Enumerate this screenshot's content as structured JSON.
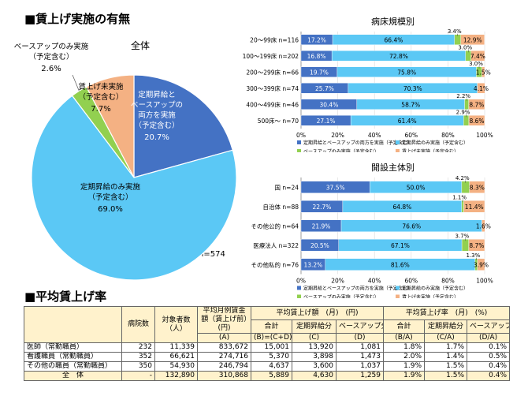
{
  "sections": {
    "wage_increase_title": "■賃上げ実施の有無",
    "average_rate_title": "■平均賃上げ率"
  },
  "colors": {
    "both": "#4472c4",
    "regular_only": "#5bc8f5",
    "base_up_only": "#92d050",
    "none": "#f4b183"
  },
  "chart_data": [
    {
      "type": "pie",
      "title": "全体",
      "total_label": "n=574",
      "slices": [
        {
          "key": "both",
          "label": "定期昇給とベースアップの両方を実施（予定含む）",
          "label_lines": [
            "定期昇給と",
            "ベースアップの",
            "両方を実施",
            "（予定含む）"
          ],
          "value": 20.7,
          "value_label": "20.7%"
        },
        {
          "key": "regular_only",
          "label": "定期昇給のみ実施（予定含む）",
          "label_lines": [
            "定期昇給のみ実施",
            "（予定含む）"
          ],
          "value": 69.0,
          "value_label": "69.0%"
        },
        {
          "key": "base_up_only",
          "label": "ベースアップのみ実施（予定含む）",
          "label_lines": [
            "ベースアップのみ実施",
            "（予定含む）"
          ],
          "value": 2.6,
          "value_label": "2.6%"
        },
        {
          "key": "none",
          "label": "賃上げ未実施（予定含む）",
          "label_lines": [
            "賃上げ未実施",
            "（予定含む）"
          ],
          "value": 7.7,
          "value_label": "7.7%"
        }
      ]
    },
    {
      "type": "bar",
      "orientation": "horizontal",
      "stacked": true,
      "title": "病床規模別",
      "xlim": [
        0,
        100
      ],
      "x_ticks": [
        "0%",
        "20%",
        "40%",
        "60%",
        "80%",
        "100%"
      ],
      "categories": [
        "20～99床 n=116",
        "100～199床 n=202",
        "200～299床 n=66",
        "300～399床 n=74",
        "400～499床 n=46",
        "500床～ n=70"
      ],
      "series": [
        {
          "key": "both",
          "name": "定期昇給とベースアップの両方を実施（予定含む）",
          "values": [
            17.2,
            16.8,
            19.7,
            25.7,
            30.4,
            27.1
          ],
          "labels": [
            "17.2%",
            "16.8%",
            "19.7%",
            "25.7%",
            "30.4%",
            "27.1%"
          ]
        },
        {
          "key": "regular_only",
          "name": "定期昇給のみ実施（予定含む）",
          "values": [
            66.4,
            72.8,
            75.8,
            70.3,
            58.7,
            61.4
          ],
          "labels": [
            "66.4%",
            "72.8%",
            "75.8%",
            "70.3%",
            "58.7%",
            "61.4%"
          ]
        },
        {
          "key": "base_up_only",
          "name": "ベースアップのみ実施（予定含む）",
          "values": [
            3.4,
            3.0,
            3.0,
            0,
            2.2,
            2.9
          ],
          "labels": [
            "3.4%",
            "3.0%",
            "3.0%",
            "",
            "2.2%",
            "2.9%"
          ]
        },
        {
          "key": "none",
          "name": "賃上げ未実施（予定含む）",
          "values": [
            12.9,
            7.4,
            1.5,
            4.1,
            8.7,
            8.6
          ],
          "labels": [
            "12.9%",
            "7.4%",
            "1.5%",
            "4.1%",
            "8.7%",
            "8.6%"
          ]
        }
      ],
      "legend_position": "bottom"
    },
    {
      "type": "bar",
      "orientation": "horizontal",
      "stacked": true,
      "title": "開設主体別",
      "xlim": [
        0,
        100
      ],
      "x_ticks": [
        "0%",
        "20%",
        "40%",
        "60%",
        "80%",
        "100%"
      ],
      "categories": [
        "国 n=24",
        "自治体 n=88",
        "その他公的 n=64",
        "医療法人 n=322",
        "その他私的 n=76"
      ],
      "series": [
        {
          "key": "both",
          "name": "定期昇給とベースアップの両方を実施（予定含む）",
          "values": [
            37.5,
            22.7,
            21.9,
            20.5,
            13.2
          ],
          "labels": [
            "37.5%",
            "22.7%",
            "21.9%",
            "20.5%",
            "13.2%"
          ]
        },
        {
          "key": "regular_only",
          "name": "定期昇給のみ実施（予定含む）",
          "values": [
            50.0,
            64.8,
            76.6,
            67.1,
            81.6
          ],
          "labels": [
            "50.0%",
            "64.8%",
            "76.6%",
            "67.1%",
            "81.6%"
          ]
        },
        {
          "key": "base_up_only",
          "name": "ベースアップのみ実施（予定含む）",
          "values": [
            4.2,
            1.1,
            0,
            3.7,
            1.3
          ],
          "labels": [
            "4.2%",
            "1.1%",
            "",
            "3.7%",
            "1.3%"
          ]
        },
        {
          "key": "none",
          "name": "賃上げ未実施（予定含む）",
          "values": [
            8.3,
            11.4,
            1.6,
            8.7,
            3.9
          ],
          "labels": [
            "8.3%",
            "11.4%",
            "1.6%",
            "8.7%",
            "3.9%"
          ]
        }
      ],
      "legend_position": "bottom"
    },
    {
      "type": "table",
      "title": "■平均賃上げ率",
      "header_top": [
        {
          "text": "",
          "rowspan": 3
        },
        {
          "text": "病院数",
          "rowspan": 3
        },
        {
          "text": "対象者数（人）",
          "rowspan": 3
        },
        {
          "text": "平均月例賃金額（賃上げ前）(円)",
          "rowspan": 2
        },
        {
          "text": "平均賃上げ額　(月)　(円)",
          "colspan": 3
        },
        {
          "text": "平均賃上げ率　(月)　(%)",
          "colspan": 3
        }
      ],
      "header_mid": [
        "合計",
        "定期昇給分",
        "ベースアップ分",
        "合計",
        "定期昇給分",
        "ベースアップ分"
      ],
      "header_bottom": [
        "(A)",
        "(B)=(C+D)",
        "(C)",
        "(D)",
        "(B/A)",
        "(C/A)",
        "(D/A)"
      ],
      "rows": [
        [
          "医師（常勤職員）",
          "232",
          "11,339",
          "833,672",
          "15,001",
          "13,920",
          "1,081",
          "1.8%",
          "1.7%",
          "0.1%"
        ],
        [
          "看護職員（常勤職員）",
          "352",
          "66,621",
          "274,716",
          "5,370",
          "3,898",
          "1,473",
          "2.0%",
          "1.4%",
          "0.5%"
        ],
        [
          "その他の職員（常勤職員）",
          "350",
          "54,930",
          "246,794",
          "4,637",
          "3,600",
          "1,037",
          "1.9%",
          "1.5%",
          "0.4%"
        ],
        [
          "全　体",
          "-",
          "132,890",
          "310,868",
          "5,889",
          "4,630",
          "1,259",
          "1.9%",
          "1.5%",
          "0.4%"
        ]
      ]
    }
  ]
}
